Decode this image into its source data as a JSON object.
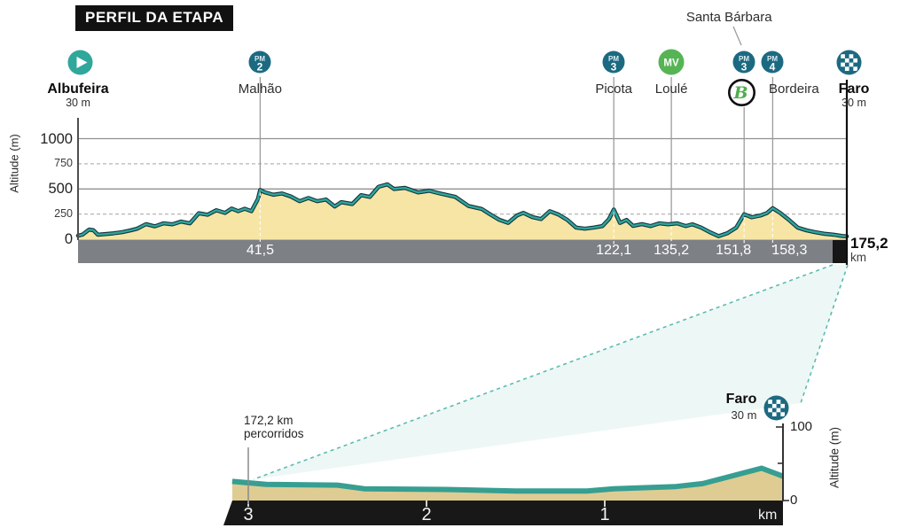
{
  "title_badge": "PERFIL DA ETAPA",
  "colors": {
    "teal": "#2FA79B",
    "teal_dark_outline": "#17333C",
    "petrol": "#1C6A81",
    "green": "#56B455",
    "profile_fill": "#F7E5A5",
    "bar_gray": "#7D8084",
    "bar_black": "#161616",
    "final_fill": "#DFCC92",
    "final_teal": "#379E92",
    "grid_solid": "#919191",
    "grid_dashed": "#B6B6B6",
    "connector": "#5BBCB0"
  },
  "chart_data": [
    {
      "id": "main",
      "type": "area",
      "title": "Stage elevation profile Albufeira to Faro",
      "ylabel": "Altitude (m)",
      "ylim": [
        0,
        1000
      ],
      "total_km": 175.2,
      "grid": true,
      "yticks": [
        {
          "v": 0,
          "label": "0",
          "major": true
        },
        {
          "v": 250,
          "label": "250",
          "major": false
        },
        {
          "v": 500,
          "label": "500",
          "major": true
        },
        {
          "v": 750,
          "label": "750",
          "major": false
        },
        {
          "v": 1000,
          "label": "1000",
          "major": true
        }
      ],
      "finish_label": {
        "value": "175,2",
        "unit": "km"
      },
      "waypoints": [
        {
          "name": "Albufeira",
          "sub": "30 m",
          "icon": "start",
          "km": 0,
          "bold": true,
          "icon_dx": 2
        },
        {
          "name": "Malhão",
          "icon": "pm",
          "pm_number": "2",
          "km": 41.5,
          "km_label": "41,5"
        },
        {
          "name": "Picota",
          "icon": "pm",
          "pm_number": "3",
          "km": 122.1,
          "km_label": "122,1"
        },
        {
          "name": "Loulé",
          "icon": "mv",
          "mv_label": "MV",
          "km": 135.2,
          "km_label": "135,2"
        },
        {
          "name": "Santa Bárbara",
          "icon": "pm",
          "pm_number": "3",
          "km": 151.8,
          "km_label": "151,8",
          "callout": true,
          "name_dx": -17,
          "b_badge": "B",
          "bar_dx": -12
        },
        {
          "name": "Bordeira",
          "icon": "pm",
          "pm_number": "4",
          "km": 158.3,
          "km_label": "158,3",
          "label_dx": 24,
          "bar_dx": 19
        },
        {
          "name": "Faro",
          "sub": "30 m",
          "icon": "finish",
          "km": 175.2,
          "bold": true,
          "icon_dx": 2,
          "label_dx": 8
        }
      ],
      "profile": [
        [
          0,
          35
        ],
        [
          1,
          45
        ],
        [
          2.5,
          95
        ],
        [
          3.5,
          90
        ],
        [
          4.5,
          45
        ],
        [
          6,
          50
        ],
        [
          8,
          58
        ],
        [
          10,
          70
        ],
        [
          12,
          88
        ],
        [
          13.5,
          105
        ],
        [
          15.5,
          150
        ],
        [
          17.5,
          128
        ],
        [
          19.5,
          158
        ],
        [
          21.5,
          148
        ],
        [
          23.5,
          175
        ],
        [
          25.5,
          158
        ],
        [
          27.5,
          258
        ],
        [
          29.5,
          243
        ],
        [
          31.5,
          288
        ],
        [
          33.5,
          262
        ],
        [
          35,
          305
        ],
        [
          36.5,
          278
        ],
        [
          38,
          303
        ],
        [
          39.5,
          278
        ],
        [
          41,
          400
        ],
        [
          41.5,
          490
        ],
        [
          42.5,
          468
        ],
        [
          44.5,
          442
        ],
        [
          46.5,
          455
        ],
        [
          48.5,
          425
        ],
        [
          50.5,
          378
        ],
        [
          52.5,
          410
        ],
        [
          54.5,
          378
        ],
        [
          56.5,
          395
        ],
        [
          58.5,
          325
        ],
        [
          60,
          368
        ],
        [
          62.5,
          350
        ],
        [
          64.5,
          438
        ],
        [
          66.5,
          420
        ],
        [
          68.5,
          522
        ],
        [
          70.5,
          545
        ],
        [
          72,
          500
        ],
        [
          74.5,
          510
        ],
        [
          77.5,
          465
        ],
        [
          80,
          482
        ],
        [
          82.5,
          455
        ],
        [
          86,
          420
        ],
        [
          89,
          330
        ],
        [
          92,
          300
        ],
        [
          94,
          245
        ],
        [
          96,
          193
        ],
        [
          98,
          162
        ],
        [
          100,
          235
        ],
        [
          101.5,
          262
        ],
        [
          103.5,
          220
        ],
        [
          105.5,
          200
        ],
        [
          107.5,
          278
        ],
        [
          109.5,
          245
        ],
        [
          111.5,
          192
        ],
        [
          113.5,
          115
        ],
        [
          115.5,
          105
        ],
        [
          117.5,
          115
        ],
        [
          119.5,
          130
        ],
        [
          121,
          200
        ],
        [
          122.1,
          295
        ],
        [
          123.5,
          162
        ],
        [
          125,
          192
        ],
        [
          126.5,
          132
        ],
        [
          128.5,
          150
        ],
        [
          130.5,
          130
        ],
        [
          132.5,
          158
        ],
        [
          134.5,
          148
        ],
        [
          136.5,
          158
        ],
        [
          138.5,
          130
        ],
        [
          140,
          148
        ],
        [
          142,
          115
        ],
        [
          144,
          70
        ],
        [
          146,
          30
        ],
        [
          148,
          60
        ],
        [
          150,
          115
        ],
        [
          151.8,
          248
        ],
        [
          153.5,
          218
        ],
        [
          155.5,
          235
        ],
        [
          157,
          260
        ],
        [
          158.3,
          308
        ],
        [
          160,
          262
        ],
        [
          162,
          192
        ],
        [
          164,
          115
        ],
        [
          166,
          88
        ],
        [
          168,
          70
        ],
        [
          170,
          55
        ],
        [
          172.2,
          45
        ],
        [
          174,
          33
        ],
        [
          175.2,
          28
        ]
      ]
    },
    {
      "id": "final_3km",
      "type": "area",
      "title": "Final 3 km profile",
      "ylabel": "Altitude (m)",
      "ylim": [
        0,
        100
      ],
      "yticks": [
        {
          "v": 100,
          "label": "100"
        },
        {
          "v": 50,
          "label": ""
        },
        {
          "v": 0,
          "label": "0"
        }
      ],
      "xticks": [
        {
          "v": 3,
          "label": "3"
        },
        {
          "v": 2,
          "label": "2"
        },
        {
          "v": 1,
          "label": "1"
        }
      ],
      "x_unit": "km",
      "distance_note": {
        "line1": "172,2 km",
        "line2": "percorridos",
        "km": 3
      },
      "finish": {
        "name": "Faro",
        "sub": "30 m",
        "icon": "finish"
      },
      "profile": [
        [
          0,
          33
        ],
        [
          0.12,
          44
        ],
        [
          0.45,
          23
        ],
        [
          0.6,
          19
        ],
        [
          0.95,
          16
        ],
        [
          1.1,
          13
        ],
        [
          1.5,
          13
        ],
        [
          1.9,
          15
        ],
        [
          2.35,
          16
        ],
        [
          2.5,
          21
        ],
        [
          2.9,
          22
        ],
        [
          3.09,
          26
        ]
      ]
    }
  ]
}
